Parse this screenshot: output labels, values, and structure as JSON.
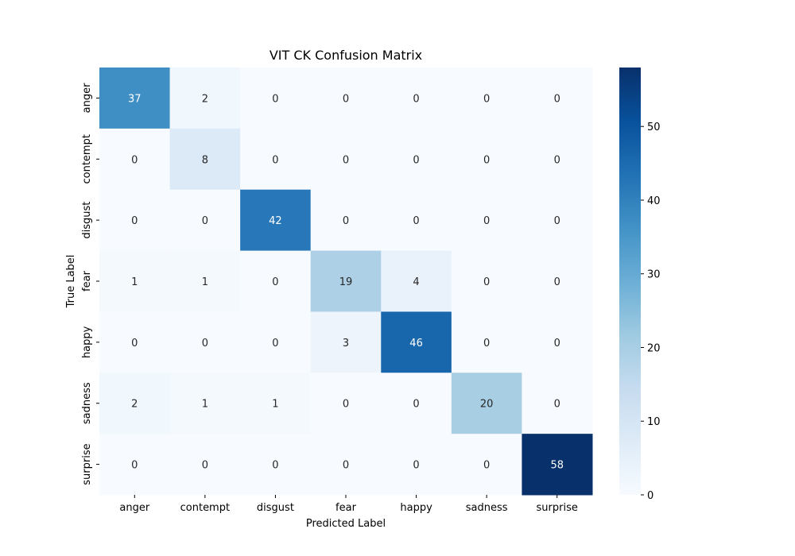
{
  "chart_data": {
    "type": "heatmap",
    "title": "VIT CK Confusion Matrix",
    "xlabel": "Predicted Label",
    "ylabel": "True Label",
    "x_categories": [
      "anger",
      "contempt",
      "disgust",
      "fear",
      "happy",
      "sadness",
      "surprise"
    ],
    "y_categories": [
      "anger",
      "contempt",
      "disgust",
      "fear",
      "happy",
      "sadness",
      "surprise"
    ],
    "matrix": [
      [
        37,
        2,
        0,
        0,
        0,
        0,
        0
      ],
      [
        0,
        8,
        0,
        0,
        0,
        0,
        0
      ],
      [
        0,
        0,
        42,
        0,
        0,
        0,
        0
      ],
      [
        1,
        1,
        0,
        19,
        4,
        0,
        0
      ],
      [
        0,
        0,
        0,
        3,
        46,
        0,
        0
      ],
      [
        2,
        1,
        1,
        0,
        0,
        20,
        0
      ],
      [
        0,
        0,
        0,
        0,
        0,
        0,
        58
      ]
    ],
    "colormap": "Blues",
    "value_range": [
      0,
      58
    ],
    "colorbar_ticks": [
      0,
      10,
      20,
      30,
      40,
      50
    ]
  }
}
